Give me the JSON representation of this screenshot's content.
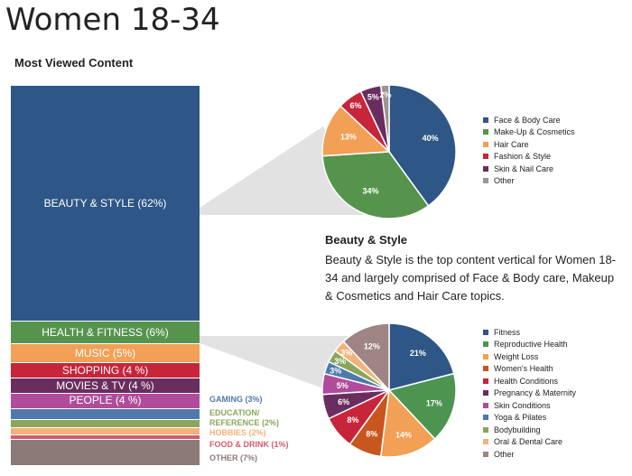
{
  "title": "Women 18-34",
  "subtitle": "Most Viewed Content",
  "description": {
    "heading": "Beauty & Style",
    "body": "Beauty & Style is the top content vertical for Women 18-34 and largely comprised of Face & Body care, Makeup & Cosmetics and Hair Care topics."
  },
  "chart_data": [
    {
      "type": "bar",
      "orientation": "stacked-vertical",
      "title": "Most Viewed Content",
      "categories": [
        "BEAUTY & STYLE",
        "HEALTH & FITNESS",
        "MUSIC",
        "SHOPPING",
        "MOVIES & TV",
        "PEOPLE",
        "GAMING",
        "EDUCATION/ REFERENCE",
        "HOBBIES",
        "FOOD & DRINK",
        "OTHER"
      ],
      "values": [
        62,
        6,
        5,
        4,
        4,
        4,
        3,
        2,
        2,
        1,
        7
      ],
      "labels": [
        "BEAUTY & STYLE (62%)",
        "HEALTH & FITNESS (6%)",
        "MUSIC (5%)",
        "SHOPPING (4 %)",
        "MOVIES & TV (4 %)",
        "PEOPLE (4 %)",
        "GAMING (3%)",
        "EDUCATION/ REFERENCE (2%)",
        "HOBBIES (2%)",
        "FOOD & DRINK (1%)",
        "OTHER (7%)"
      ],
      "colors": [
        "#2e5686",
        "#56944e",
        "#f1a055",
        "#c7253a",
        "#6a2d5f",
        "#b04c9b",
        "#4f79ab",
        "#8aa65b",
        "#f2b27a",
        "#d45a6e",
        "#8c7a78"
      ]
    },
    {
      "type": "pie",
      "title": "Beauty & Style",
      "categories": [
        "Face & Body Care",
        "Make-Up & Cosmetics",
        "Hair Care",
        "Fashion & Style",
        "Skin & Nail Care",
        "Other"
      ],
      "values": [
        40,
        34,
        13,
        6,
        5,
        2
      ],
      "colors": [
        "#2e5686",
        "#56944e",
        "#f1a055",
        "#c7253a",
        "#6a2d5f",
        "#9e9490"
      ],
      "legend": "right"
    },
    {
      "type": "pie",
      "title": "Health & Fitness",
      "categories": [
        "Fitness",
        "Reproductive Health",
        "Weight Loss",
        "Women's Health",
        "Health Conditions",
        "Pregnancy & Maternity",
        "Skin Conditions",
        "Yoga & Pilates",
        "Bodybuilding",
        "Oral & Dental Care",
        "Other"
      ],
      "values": [
        21,
        17,
        14,
        8,
        8,
        6,
        5,
        3,
        3,
        3,
        12
      ],
      "colors": [
        "#2e5686",
        "#4d9451",
        "#f1a055",
        "#c8561e",
        "#c7253a",
        "#6a2d5f",
        "#b04c9b",
        "#4f79ab",
        "#8aa65b",
        "#f2b27a",
        "#9e8584"
      ],
      "legend": "right"
    }
  ]
}
